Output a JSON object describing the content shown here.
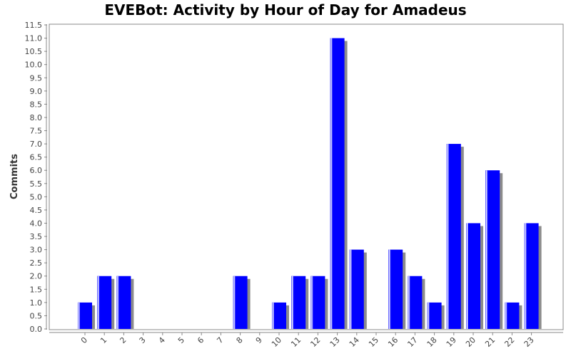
{
  "chart_data": {
    "type": "bar",
    "title": "EVEBot: Activity by Hour of Day for Amadeus",
    "xlabel": "",
    "ylabel": "Commits",
    "categories": [
      "0",
      "1",
      "2",
      "3",
      "4",
      "5",
      "6",
      "7",
      "8",
      "9",
      "10",
      "11",
      "12",
      "13",
      "14",
      "15",
      "16",
      "17",
      "18",
      "19",
      "20",
      "21",
      "22",
      "23"
    ],
    "series": [
      {
        "values": [
          1,
          2,
          2,
          0,
          0,
          0,
          0,
          0,
          2,
          0,
          1,
          2,
          2,
          11,
          3,
          0,
          3,
          2,
          1,
          7,
          4,
          6,
          1,
          4
        ]
      }
    ],
    "ylim": [
      0,
      11.5
    ],
    "yticks": [
      "0.0",
      "0.5",
      "1.0",
      "1.5",
      "2.0",
      "2.5",
      "3.0",
      "3.5",
      "4.0",
      "4.5",
      "5.0",
      "5.5",
      "6.0",
      "6.5",
      "7.0",
      "7.5",
      "8.0",
      "8.5",
      "9.0",
      "9.5",
      "10.0",
      "10.5",
      "11.0",
      "11.5"
    ],
    "grid": false,
    "legend": "none",
    "colors": {
      "bar": "#0000ff",
      "bar_edge": "#6666ff",
      "shadow": "#8c8c8c",
      "axis": "#888888"
    }
  }
}
